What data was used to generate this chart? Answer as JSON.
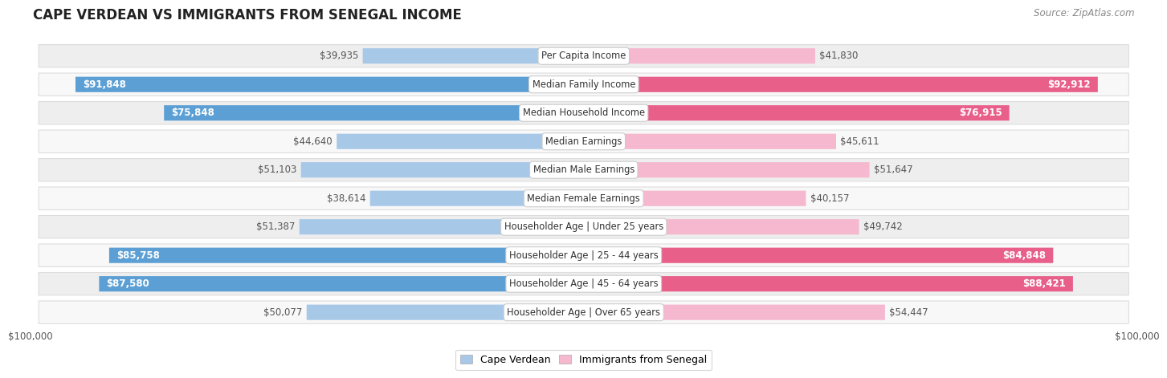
{
  "title": "CAPE VERDEAN VS IMMIGRANTS FROM SENEGAL INCOME",
  "source": "Source: ZipAtlas.com",
  "categories": [
    "Per Capita Income",
    "Median Family Income",
    "Median Household Income",
    "Median Earnings",
    "Median Male Earnings",
    "Median Female Earnings",
    "Householder Age | Under 25 years",
    "Householder Age | 25 - 44 years",
    "Householder Age | 45 - 64 years",
    "Householder Age | Over 65 years"
  ],
  "cape_verdean": [
    39935,
    91848,
    75848,
    44640,
    51103,
    38614,
    51387,
    85758,
    87580,
    50077
  ],
  "senegal": [
    41830,
    92912,
    76915,
    45611,
    51647,
    40157,
    49742,
    84848,
    88421,
    54447
  ],
  "max_value": 100000,
  "cv_color_light": "#a8c8e8",
  "cv_color_dark": "#5b9fd4",
  "sn_color_light": "#f5b8ce",
  "sn_color_dark": "#e8608a",
  "row_bg_even": "#eeeeee",
  "row_bg_odd": "#f8f8f8",
  "legend_cape_verdean": "Cape Verdean",
  "legend_senegal": "Immigrants from Senegal",
  "cv_threshold": 60000,
  "sn_threshold": 60000
}
